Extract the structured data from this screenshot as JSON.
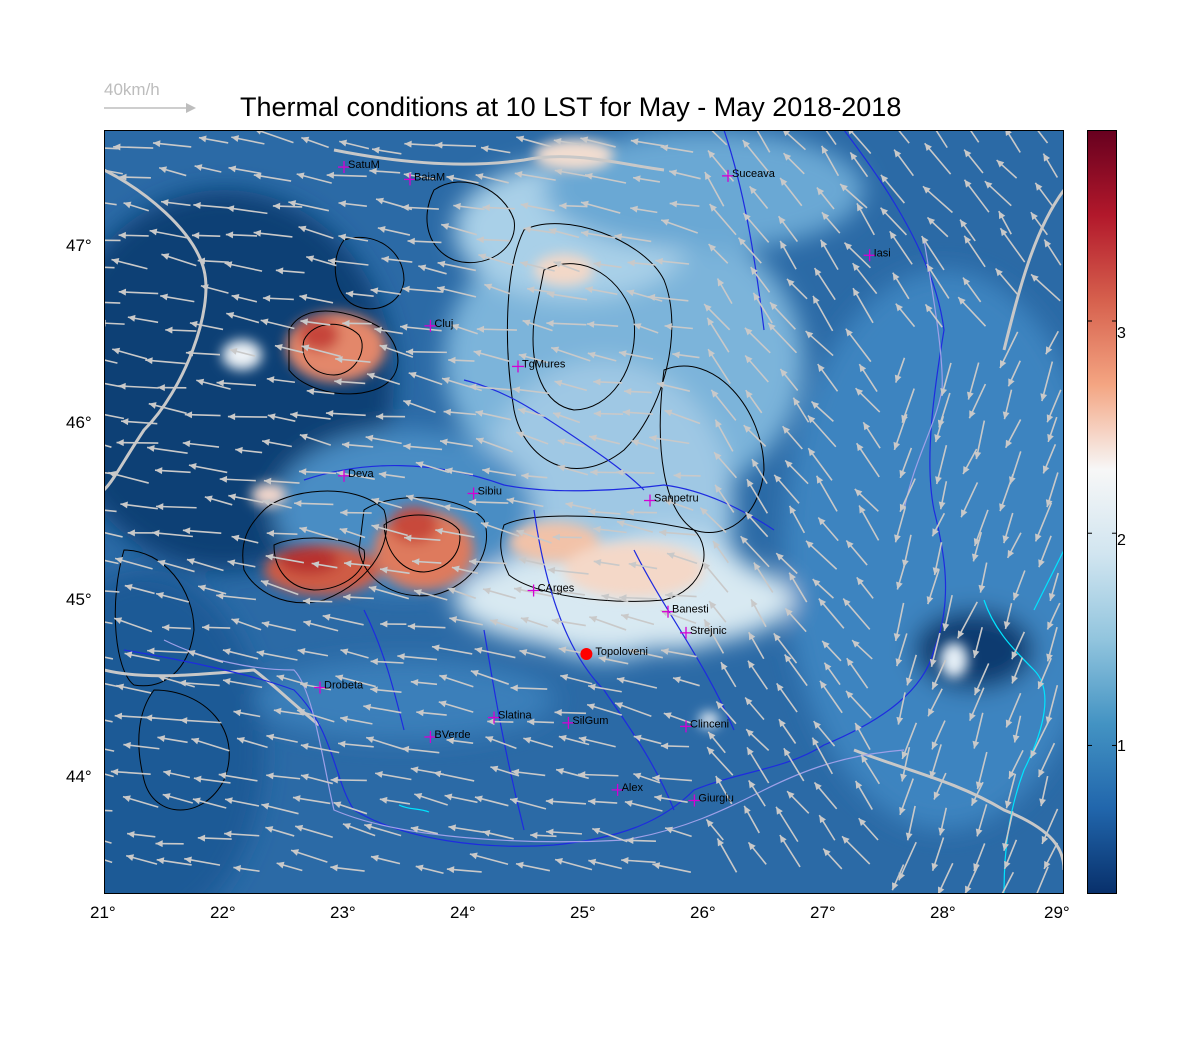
{
  "title": "Thermal conditions at 10 LST for May - May  2018-2018",
  "wind_scale": {
    "label": "40km/h",
    "color": "#bdbdbd"
  },
  "map": {
    "lon_range": [
      21,
      29
    ],
    "lat_range": [
      43.33,
      47.66
    ],
    "lon_ticks": [
      "21°",
      "22°",
      "23°",
      "24°",
      "25°",
      "26°",
      "27°",
      "28°",
      "29°"
    ],
    "lat_ticks": [
      "44°",
      "45°",
      "46°",
      "47°"
    ],
    "cities": [
      {
        "name": "SatuM",
        "lon": 23.0,
        "lat": 47.45
      },
      {
        "name": "BaiaM",
        "lon": 23.55,
        "lat": 47.38
      },
      {
        "name": "Suceava",
        "lon": 26.2,
        "lat": 47.4
      },
      {
        "name": "Iasi",
        "lon": 27.38,
        "lat": 46.95
      },
      {
        "name": "Cluj",
        "lon": 23.72,
        "lat": 46.55
      },
      {
        "name": "TgMures",
        "lon": 24.45,
        "lat": 46.32
      },
      {
        "name": "Deva",
        "lon": 23.0,
        "lat": 45.7
      },
      {
        "name": "Sibiu",
        "lon": 24.08,
        "lat": 45.6
      },
      {
        "name": "Sanpetru",
        "lon": 25.55,
        "lat": 45.56
      },
      {
        "name": "CArges",
        "lon": 24.58,
        "lat": 45.05
      },
      {
        "name": "Banesti",
        "lon": 25.7,
        "lat": 44.93
      },
      {
        "name": "Strejnic",
        "lon": 25.85,
        "lat": 44.81
      },
      {
        "name": "Drobeta",
        "lon": 22.8,
        "lat": 44.5
      },
      {
        "name": "Slatina",
        "lon": 24.25,
        "lat": 44.33
      },
      {
        "name": "SilGum",
        "lon": 24.87,
        "lat": 44.3
      },
      {
        "name": "Clinceni",
        "lon": 25.85,
        "lat": 44.28
      },
      {
        "name": "BVerde",
        "lon": 23.72,
        "lat": 44.22
      },
      {
        "name": "Alex",
        "lon": 25.28,
        "lat": 43.92
      },
      {
        "name": "Giurgiu",
        "lon": 25.92,
        "lat": 43.86
      }
    ],
    "highlight": {
      "name": "Topoloveni",
      "lon": 25.02,
      "lat": 44.69,
      "color": "#ff0000"
    }
  },
  "colorbar": {
    "range": [
      0.3,
      3.9
    ],
    "ticks": [
      "1",
      "2",
      "3"
    ],
    "tick_values": [
      1,
      2,
      3
    ],
    "colors": [
      "#08306b",
      "#2166ac",
      "#4393c3",
      "#92c5de",
      "#d1e5f0",
      "#f7f7f7",
      "#f4a582",
      "#d6604d",
      "#b2182b",
      "#67001f"
    ]
  }
}
